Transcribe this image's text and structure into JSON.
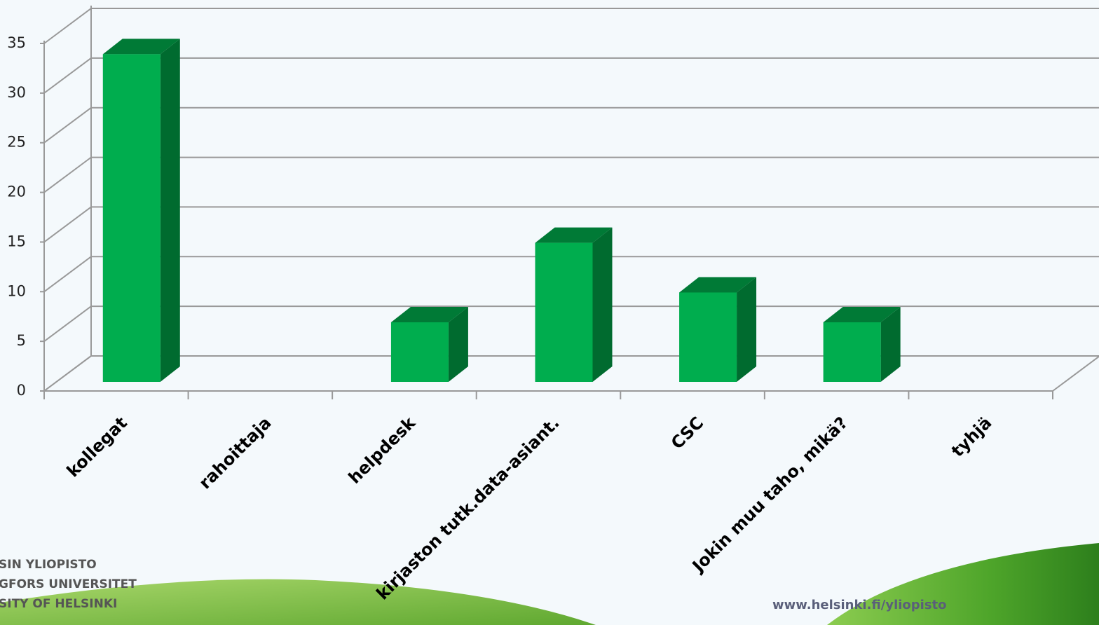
{
  "chart_data": {
    "type": "bar3d",
    "categories": [
      "kollegat",
      "rahoittaja",
      "helpdesk",
      "kirjaston tutk.data-asiant.",
      "CSC",
      "Jokin muu taho, mikä?",
      "tyhjä"
    ],
    "values": [
      33,
      0,
      6,
      14,
      9,
      6,
      0
    ],
    "color": "#00ad4e",
    "ylim": [
      0,
      35
    ],
    "yticks": [
      0,
      5,
      10,
      15,
      20,
      25,
      30,
      35
    ],
    "grid": true
  },
  "footer": {
    "logo_lines": [
      "SIN YLIOPISTO",
      "GFORS UNIVERSITET",
      "SITY OF HELSINKI"
    ],
    "url": "www.helsinki.fi/yliopisto"
  }
}
